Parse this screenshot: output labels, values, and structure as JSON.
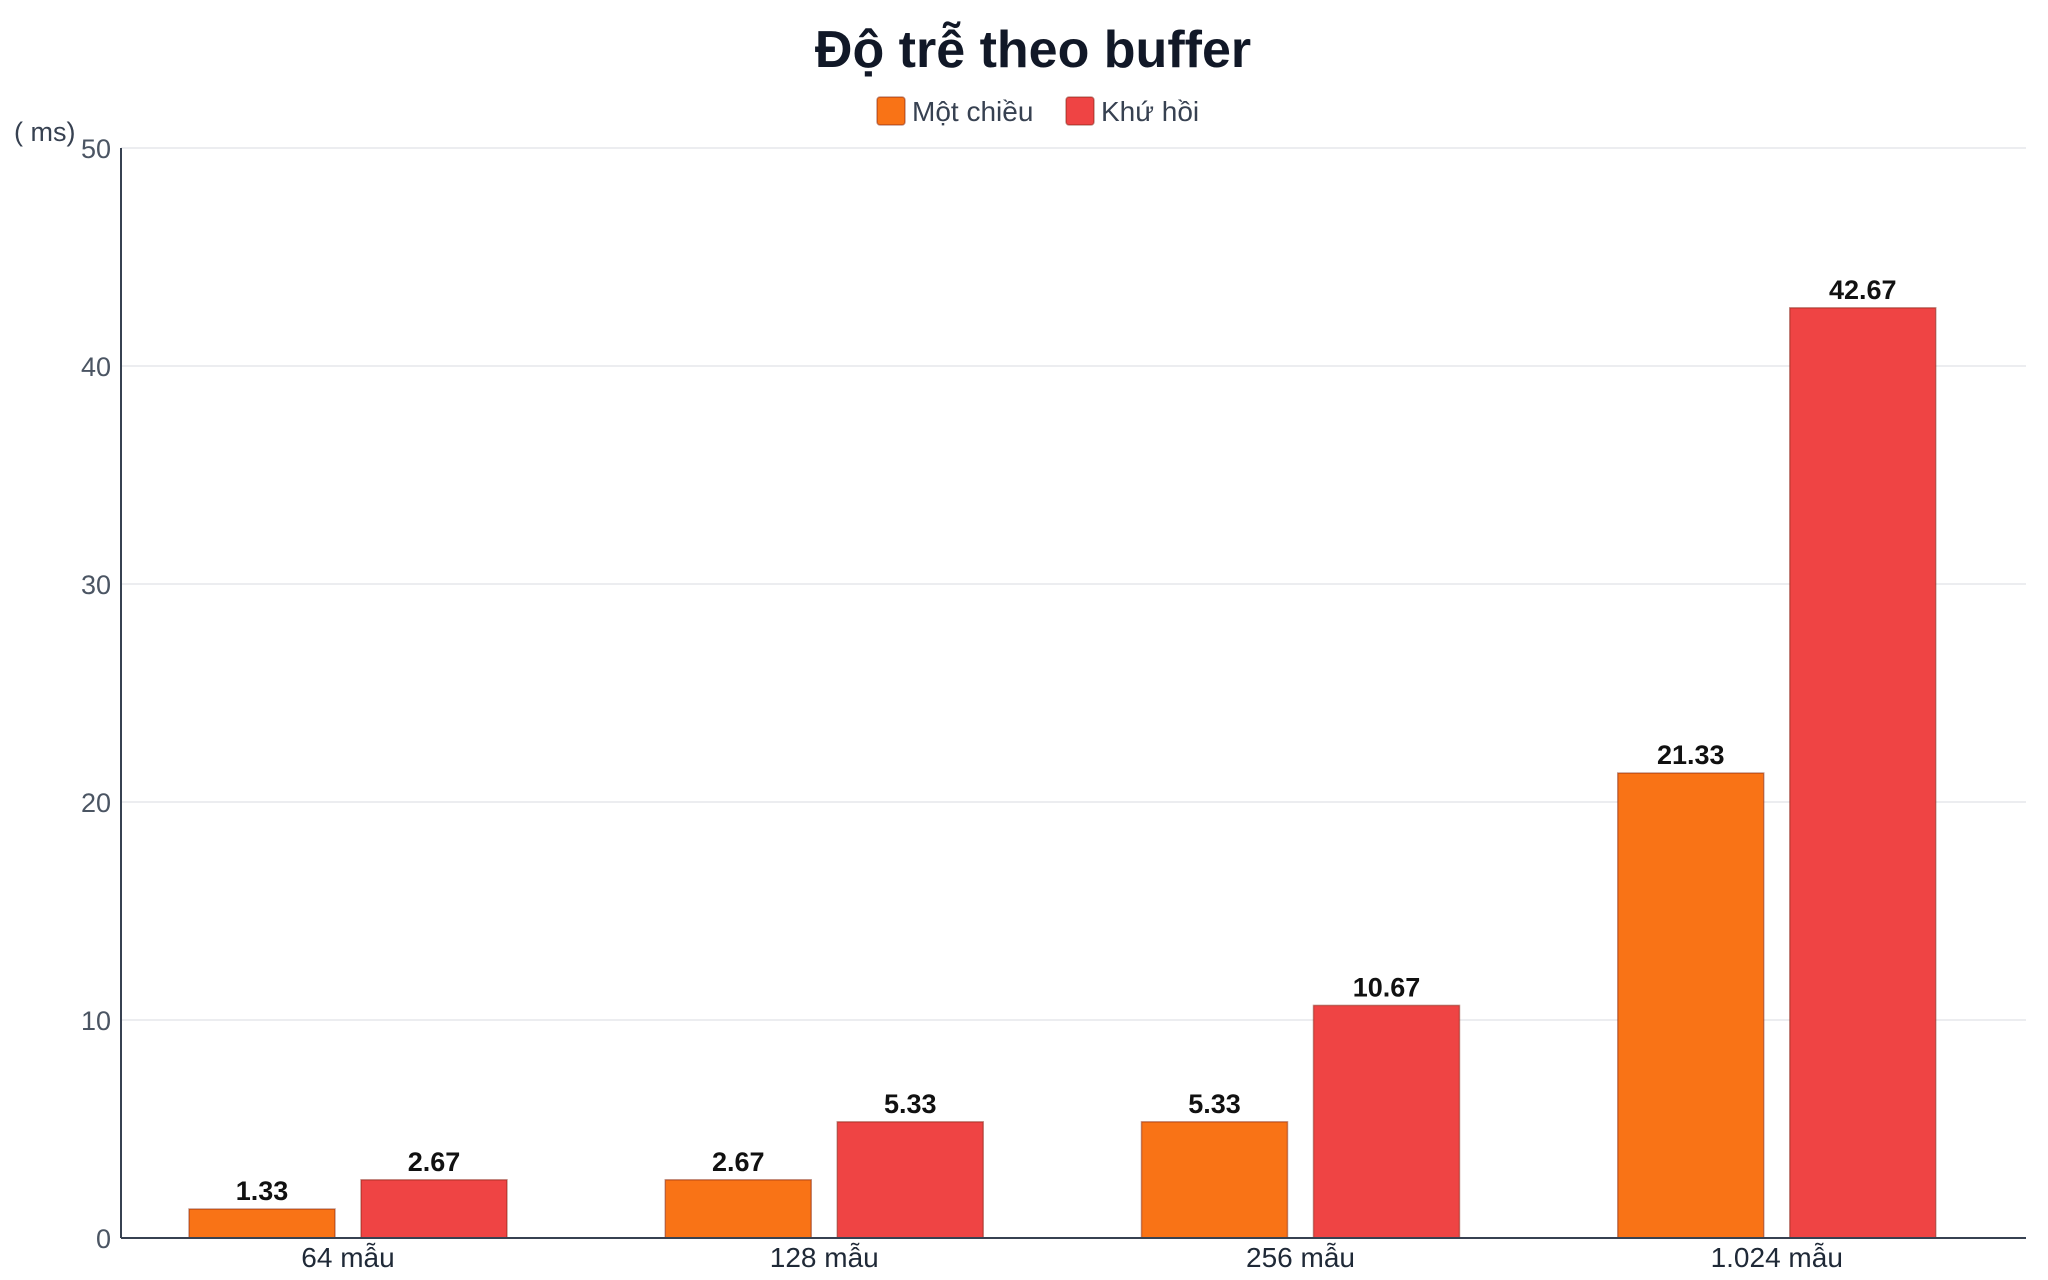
{
  "chart_data": {
    "type": "bar",
    "title": "Độ trễ theo buffer",
    "ylabel": "( ms)",
    "xlabel": "",
    "categories": [
      "64 mẫu",
      "128 mẫu",
      "256 mẫu",
      "1.024 mẫu"
    ],
    "series": [
      {
        "name": "Một chiều",
        "color": "#f97316",
        "values": [
          1.33,
          2.67,
          5.33,
          21.33
        ]
      },
      {
        "name": "Khứ hồi",
        "color": "#ef4444",
        "values": [
          2.67,
          5.33,
          10.67,
          42.67
        ]
      }
    ],
    "data_labels": [
      [
        "1.33",
        "2.67",
        "5.33",
        "21.33"
      ],
      [
        "2.67",
        "5.33",
        "10.67",
        "42.67"
      ]
    ],
    "ylim": [
      0,
      50
    ],
    "yticks": [
      0,
      10,
      20,
      30,
      40,
      50
    ],
    "grid": true,
    "legend_position": "top-center"
  }
}
